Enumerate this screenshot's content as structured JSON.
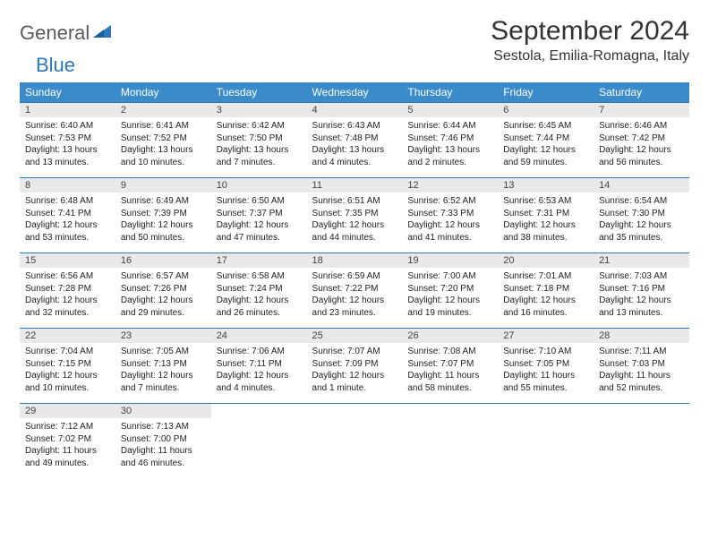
{
  "logo": {
    "general": "General",
    "blue": "Blue"
  },
  "title": "September 2024",
  "location": "Sestola, Emilia-Romagna, Italy",
  "colors": {
    "header_bg": "#3a8bc9",
    "header_text": "#ffffff",
    "daynum_bg": "#e9e9e9",
    "cell_border": "#2c77b8",
    "logo_gray": "#5a5a5a",
    "logo_blue": "#2c77b8"
  },
  "weekdays": [
    "Sunday",
    "Monday",
    "Tuesday",
    "Wednesday",
    "Thursday",
    "Friday",
    "Saturday"
  ],
  "days": [
    {
      "n": "1",
      "sr": "Sunrise: 6:40 AM",
      "ss": "Sunset: 7:53 PM",
      "dl": "Daylight: 13 hours and 13 minutes."
    },
    {
      "n": "2",
      "sr": "Sunrise: 6:41 AM",
      "ss": "Sunset: 7:52 PM",
      "dl": "Daylight: 13 hours and 10 minutes."
    },
    {
      "n": "3",
      "sr": "Sunrise: 6:42 AM",
      "ss": "Sunset: 7:50 PM",
      "dl": "Daylight: 13 hours and 7 minutes."
    },
    {
      "n": "4",
      "sr": "Sunrise: 6:43 AM",
      "ss": "Sunset: 7:48 PM",
      "dl": "Daylight: 13 hours and 4 minutes."
    },
    {
      "n": "5",
      "sr": "Sunrise: 6:44 AM",
      "ss": "Sunset: 7:46 PM",
      "dl": "Daylight: 13 hours and 2 minutes."
    },
    {
      "n": "6",
      "sr": "Sunrise: 6:45 AM",
      "ss": "Sunset: 7:44 PM",
      "dl": "Daylight: 12 hours and 59 minutes."
    },
    {
      "n": "7",
      "sr": "Sunrise: 6:46 AM",
      "ss": "Sunset: 7:42 PM",
      "dl": "Daylight: 12 hours and 56 minutes."
    },
    {
      "n": "8",
      "sr": "Sunrise: 6:48 AM",
      "ss": "Sunset: 7:41 PM",
      "dl": "Daylight: 12 hours and 53 minutes."
    },
    {
      "n": "9",
      "sr": "Sunrise: 6:49 AM",
      "ss": "Sunset: 7:39 PM",
      "dl": "Daylight: 12 hours and 50 minutes."
    },
    {
      "n": "10",
      "sr": "Sunrise: 6:50 AM",
      "ss": "Sunset: 7:37 PM",
      "dl": "Daylight: 12 hours and 47 minutes."
    },
    {
      "n": "11",
      "sr": "Sunrise: 6:51 AM",
      "ss": "Sunset: 7:35 PM",
      "dl": "Daylight: 12 hours and 44 minutes."
    },
    {
      "n": "12",
      "sr": "Sunrise: 6:52 AM",
      "ss": "Sunset: 7:33 PM",
      "dl": "Daylight: 12 hours and 41 minutes."
    },
    {
      "n": "13",
      "sr": "Sunrise: 6:53 AM",
      "ss": "Sunset: 7:31 PM",
      "dl": "Daylight: 12 hours and 38 minutes."
    },
    {
      "n": "14",
      "sr": "Sunrise: 6:54 AM",
      "ss": "Sunset: 7:30 PM",
      "dl": "Daylight: 12 hours and 35 minutes."
    },
    {
      "n": "15",
      "sr": "Sunrise: 6:56 AM",
      "ss": "Sunset: 7:28 PM",
      "dl": "Daylight: 12 hours and 32 minutes."
    },
    {
      "n": "16",
      "sr": "Sunrise: 6:57 AM",
      "ss": "Sunset: 7:26 PM",
      "dl": "Daylight: 12 hours and 29 minutes."
    },
    {
      "n": "17",
      "sr": "Sunrise: 6:58 AM",
      "ss": "Sunset: 7:24 PM",
      "dl": "Daylight: 12 hours and 26 minutes."
    },
    {
      "n": "18",
      "sr": "Sunrise: 6:59 AM",
      "ss": "Sunset: 7:22 PM",
      "dl": "Daylight: 12 hours and 23 minutes."
    },
    {
      "n": "19",
      "sr": "Sunrise: 7:00 AM",
      "ss": "Sunset: 7:20 PM",
      "dl": "Daylight: 12 hours and 19 minutes."
    },
    {
      "n": "20",
      "sr": "Sunrise: 7:01 AM",
      "ss": "Sunset: 7:18 PM",
      "dl": "Daylight: 12 hours and 16 minutes."
    },
    {
      "n": "21",
      "sr": "Sunrise: 7:03 AM",
      "ss": "Sunset: 7:16 PM",
      "dl": "Daylight: 12 hours and 13 minutes."
    },
    {
      "n": "22",
      "sr": "Sunrise: 7:04 AM",
      "ss": "Sunset: 7:15 PM",
      "dl": "Daylight: 12 hours and 10 minutes."
    },
    {
      "n": "23",
      "sr": "Sunrise: 7:05 AM",
      "ss": "Sunset: 7:13 PM",
      "dl": "Daylight: 12 hours and 7 minutes."
    },
    {
      "n": "24",
      "sr": "Sunrise: 7:06 AM",
      "ss": "Sunset: 7:11 PM",
      "dl": "Daylight: 12 hours and 4 minutes."
    },
    {
      "n": "25",
      "sr": "Sunrise: 7:07 AM",
      "ss": "Sunset: 7:09 PM",
      "dl": "Daylight: 12 hours and 1 minute."
    },
    {
      "n": "26",
      "sr": "Sunrise: 7:08 AM",
      "ss": "Sunset: 7:07 PM",
      "dl": "Daylight: 11 hours and 58 minutes."
    },
    {
      "n": "27",
      "sr": "Sunrise: 7:10 AM",
      "ss": "Sunset: 7:05 PM",
      "dl": "Daylight: 11 hours and 55 minutes."
    },
    {
      "n": "28",
      "sr": "Sunrise: 7:11 AM",
      "ss": "Sunset: 7:03 PM",
      "dl": "Daylight: 11 hours and 52 minutes."
    },
    {
      "n": "29",
      "sr": "Sunrise: 7:12 AM",
      "ss": "Sunset: 7:02 PM",
      "dl": "Daylight: 11 hours and 49 minutes."
    },
    {
      "n": "30",
      "sr": "Sunrise: 7:13 AM",
      "ss": "Sunset: 7:00 PM",
      "dl": "Daylight: 11 hours and 46 minutes."
    }
  ]
}
